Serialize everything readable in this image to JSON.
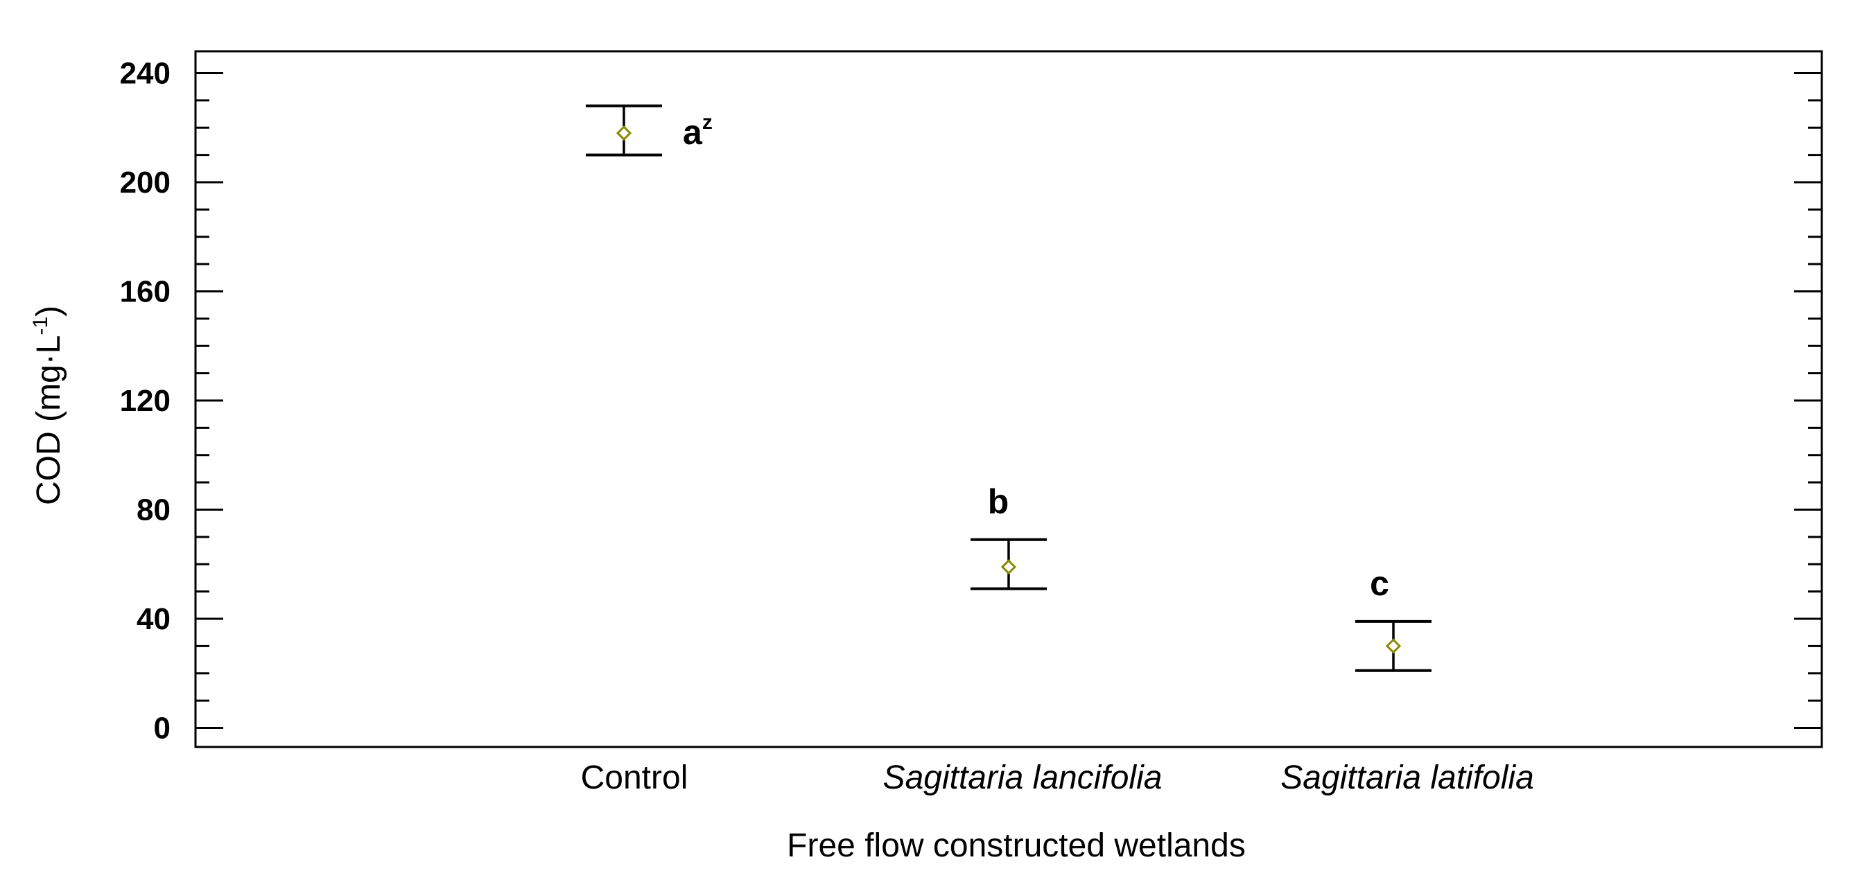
{
  "chart_data": {
    "type": "scatter",
    "categories": [
      "Control",
      "Sagittaria lancifolia",
      "Sagittaria latifolia"
    ],
    "category_italic": [
      false,
      true,
      true
    ],
    "means": [
      218,
      59,
      30
    ],
    "error_upper": [
      228,
      69,
      39
    ],
    "error_lower": [
      210,
      51,
      21
    ],
    "significance": [
      {
        "letter": "a",
        "superscript": "z"
      },
      {
        "letter": "b",
        "superscript": ""
      },
      {
        "letter": "c",
        "superscript": ""
      }
    ],
    "xlabel": "Free flow constructed wetlands",
    "ylabel": "COD (mg·L",
    "ylabel_superscript": "-1",
    "ylabel_close": ")",
    "ylim": [
      -7,
      248
    ],
    "yticks": [
      0,
      40,
      80,
      120,
      160,
      200,
      240
    ],
    "ytick_labels": [
      "0",
      "40",
      "80",
      "120",
      "160",
      "200",
      "240"
    ],
    "minor_tick_step": 10,
    "marker_color": "#8a8a00",
    "grid": false,
    "legend": "none"
  }
}
